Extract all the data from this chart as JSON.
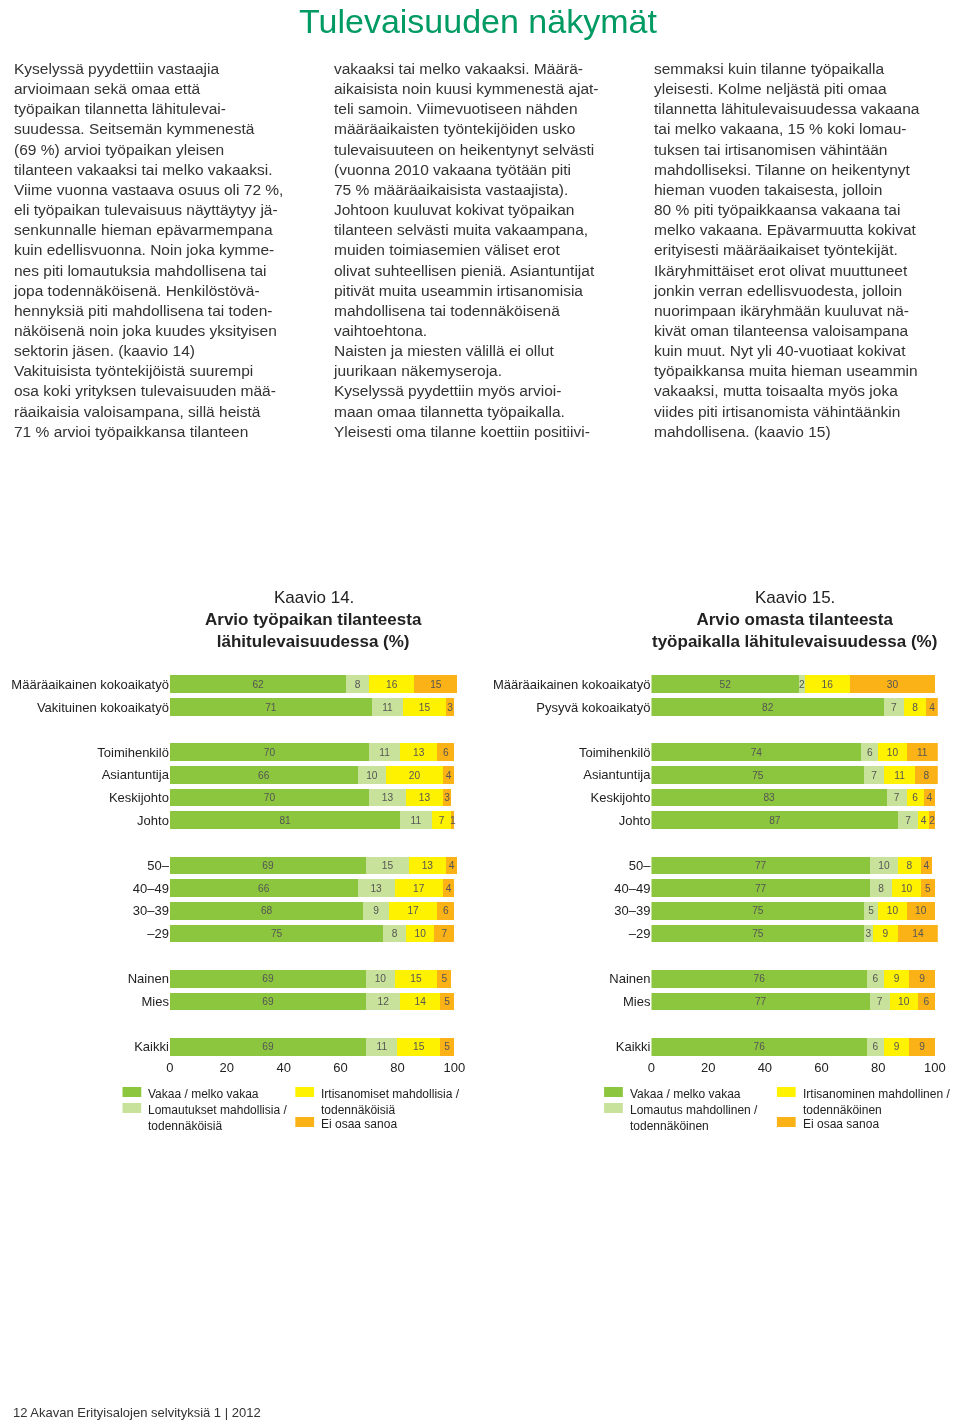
{
  "chart_data": [
    {
      "type": "other",
      "title": "Tulevaisuuden näkymät",
      "annotations": [
        "Kyselyssä pyydettiin vastaajia\narvioimaan sekä omaa että\ntyöpaikan tilannetta lähitulevai-\nsuudessa. Seitsemän kymmenestä\n(69 %) arvioi työpaikan yleisen\ntilanteen vakaaksi tai melko vakaaksi.\nViime vuonna vastaava osuus oli 72 %,\neli työpaikan tulevaisuus näyttäytyy jä-\nsenkunnalle hieman epävarmempana\nkuin edellisvuonna. Noin joka kymme-\nnes piti lomautuksia mahdollisena tai\njopa todennäköisenä. Henkilöstövä-\nhennyksiä piti mahdollisena tai toden-\nnäköisenä noin joka kuudes yksityisen\nsektorin jäsen. (kaavio 14)\nVakituisista työntekijöistä suurempi\nosa koki yrityksen tulevaisuuden mää-\nräaikaisia valoisampana, sillä heistä\n71 % arvioi työpaikkansa tilanteen",
        "vakaaksi tai melko vakaaksi. Määrä-\naikaisista noin kuusi kymmenestä ajat-\nteli samoin. Viimevuotiseen nähden\nmääräaikaisten työntekijöiden usko\ntulevaisuuteen on heikentynyt selvästi\n(vuonna 2010 vakaana työtään piti\n75 % määräaikaisista vastaajista).\nJohtoon kuuluvat kokivat työpaikan\ntilanteen selvästi muita vakaampana,\nmuiden toimiasemien väliset erot\nolivat suhteellisen pieniä. Asiantuntijat\npitivät muita useammin irtisanomisia\nmahdollisena tai todennäköisenä\nvaihtoehtona.\nNaisten ja miesten välillä ei ollut\njuurikaan näkemyseroja.\nKyselyssä pyydettiin myös arvioi-\nmaan omaa tilannetta työpaikalla.\nYleisesti oma tilanne koettiin positiivi-",
        "semmaksi kuin tilanne työpaikalla\nyleisesti. Kolme neljästä piti omaa\ntilannetta lähitulevaisuudessa vakaana\ntai melko vakaana, 15 % koki lomau-\ntuksen tai irtisanomisen vähintään\nmahdolliseksi. Tilanne on heikentynyt\nhieman vuoden takaisesta, jolloin\n80 % piti työpaikkaansa vakaana tai\nmelko vakaana. Epävarmuutta kokivat\nerityisesti määräaikaiset työntekijät.\nIkäryhmittäiset erot olivat muuttuneet\njonkin verran edellisvuodesta, jolloin\nnuorimpaan ikäryhmään kuuluvat nä-\nkivät oman tilanteensa valoisampana\nkuin muut. Nyt yli 40-vuotiaat kokivat\ntyöpaikkansa muita hieman useammin\nvakaaksi, mutta toisaalta myös joka\nviides piti irtisanomista vähintäänkin\nmahdollisena. (kaavio 15)",
        "12 Akavan Erityisalojen selvityksiä 1 | 2012"
      ]
    },
    {
      "type": "bar",
      "orientation": "horizontal",
      "stacked": true,
      "data_labels": true,
      "legend": "bottom",
      "title": "Kaavio 14.",
      "subtitle": "Arvio työpaikan tilanteesta\nlähitulevaisuudessa (%)",
      "categories": [
        "Määräaikainen kokoaikatyö",
        "Vakituinen kokoaikatyö",
        null,
        "Toimihenkilö",
        "Asiantuntija",
        "Keskijohto",
        "Johto",
        null,
        "50–",
        "40–49",
        "30–39",
        "–29",
        null,
        "Nainen",
        "Mies",
        null,
        "Kaikki"
      ],
      "xlim": [
        0,
        101
      ],
      "xticks": [
        0,
        20,
        40,
        60,
        80,
        100
      ],
      "series": [
        {
          "name": "Vakaa / melko vakaa",
          "color": "#8cc63f",
          "values": [
            62,
            71,
            null,
            70,
            66,
            70,
            81,
            null,
            69,
            66,
            68,
            75,
            null,
            69,
            69,
            null,
            69
          ]
        },
        {
          "name": "Lomautukset mahdollisia /\ntodennäköisiä",
          "color": "#c9e29b",
          "values": [
            8,
            11,
            null,
            11,
            10,
            13,
            11,
            null,
            15,
            13,
            9,
            8,
            null,
            10,
            12,
            null,
            11
          ]
        },
        {
          "name": "Irtisanomiset mahdollisia /\ntodennäköisiä",
          "color": "#fff200",
          "values": [
            16,
            15,
            null,
            13,
            20,
            13,
            7,
            null,
            13,
            17,
            17,
            10,
            null,
            15,
            14,
            null,
            15
          ]
        },
        {
          "name": "Ei osaa sanoa",
          "color": "#fbb216",
          "values": [
            15,
            3,
            null,
            6,
            4,
            3,
            1,
            null,
            4,
            4,
            6,
            7,
            null,
            5,
            5,
            null,
            5
          ]
        }
      ]
    },
    {
      "type": "bar",
      "orientation": "horizontal",
      "stacked": true,
      "data_labels": true,
      "legend": "bottom",
      "title": "Kaavio 15.",
      "subtitle": "Arvio omasta tilanteesta\ntyöpaikalla lähitulevaisuudessa (%)",
      "categories": [
        "Määräaikainen kokoaikatyö",
        "Pysyvä kokoaikatyö",
        null,
        "Toimihenkilö",
        "Asiantuntija",
        "Keskijohto",
        "Johto",
        null,
        "50–",
        "40–49",
        "30–39",
        "–29",
        null,
        "Nainen",
        "Mies",
        null,
        "Kaikki"
      ],
      "xlim": [
        0,
        101
      ],
      "xticks": [
        0,
        20,
        40,
        60,
        80,
        100
      ],
      "series": [
        {
          "name": "Vakaa / melko vakaa",
          "color": "#8cc63f",
          "values": [
            52,
            82,
            null,
            74,
            75,
            83,
            87,
            null,
            77,
            77,
            75,
            75,
            null,
            76,
            77,
            null,
            76
          ]
        },
        {
          "name": "Lomautus mahdollinen /\ntodennäköinen",
          "color": "#c9e29b",
          "values": [
            2,
            7,
            null,
            6,
            7,
            7,
            7,
            null,
            10,
            8,
            5,
            3,
            null,
            6,
            7,
            null,
            6
          ]
        },
        {
          "name": "Irtisanominen mahdollinen /\ntodennäköinen",
          "color": "#fff200",
          "values": [
            16,
            8,
            null,
            10,
            11,
            6,
            4,
            null,
            8,
            10,
            10,
            9,
            null,
            9,
            10,
            null,
            9
          ]
        },
        {
          "name": "Ei osaa sanoa",
          "color": "#fbb216",
          "values": [
            30,
            4,
            null,
            11,
            8,
            4,
            2,
            null,
            4,
            5,
            10,
            14,
            null,
            9,
            6,
            null,
            9
          ]
        }
      ]
    }
  ]
}
